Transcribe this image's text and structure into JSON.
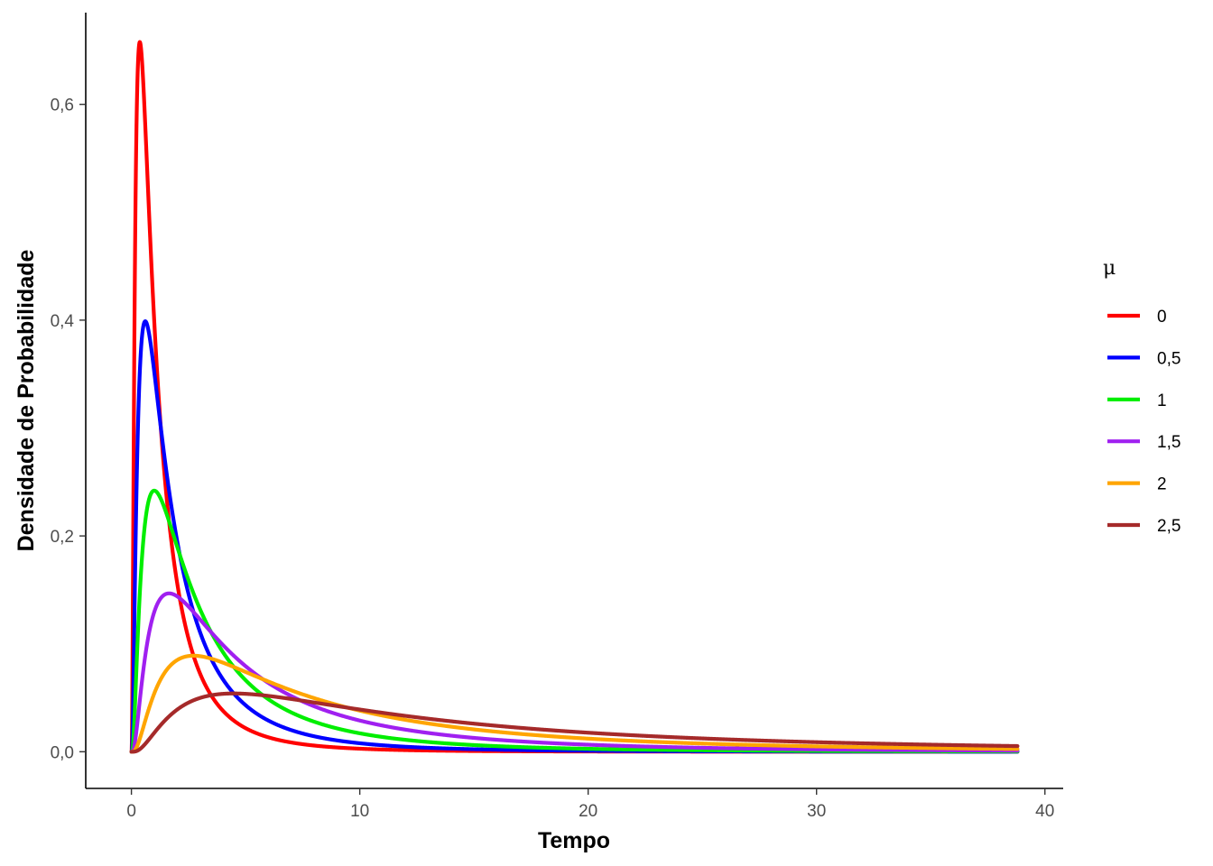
{
  "chart_data": {
    "type": "line",
    "xlabel": "Tempo",
    "ylabel": "Densidade de Probabilidade",
    "xlim": [
      -2,
      40.8
    ],
    "ylim": [
      -0.034,
      0.685
    ],
    "x_ticks": [
      0,
      10,
      20,
      30,
      40
    ],
    "x_tick_labels": [
      "0",
      "10",
      "20",
      "30",
      "40"
    ],
    "y_ticks": [
      0,
      0.2,
      0.4,
      0.6
    ],
    "y_tick_labels": [
      "0,0",
      "0,2",
      "0,4",
      "0,6"
    ],
    "grid": false,
    "legend": {
      "title": "μ",
      "placement": "right"
    },
    "x_range": [
      0,
      38.8
    ],
    "series": [
      {
        "name": "0",
        "color": "#ff0000",
        "mu": 0,
        "sigma": 1,
        "peak": {
          "x": 0.37,
          "y": 0.66
        }
      },
      {
        "name": "0,5",
        "color": "#0000ff",
        "mu": 0.5,
        "sigma": 1,
        "peak": {
          "x": 0.61,
          "y": 0.4
        }
      },
      {
        "name": "1",
        "color": "#00ee00",
        "mu": 1,
        "sigma": 1,
        "peak": {
          "x": 1.0,
          "y": 0.243
        }
      },
      {
        "name": "1,5",
        "color": "#a020f0",
        "mu": 1.5,
        "sigma": 1,
        "peak": {
          "x": 1.65,
          "y": 0.148
        }
      },
      {
        "name": "2",
        "color": "#ffa500",
        "mu": 2,
        "sigma": 1,
        "peak": {
          "x": 2.72,
          "y": 0.089
        }
      },
      {
        "name": "2,5",
        "color": "#a52a2a",
        "mu": 2.5,
        "sigma": 1,
        "peak": {
          "x": 4.48,
          "y": 0.054
        }
      }
    ]
  }
}
